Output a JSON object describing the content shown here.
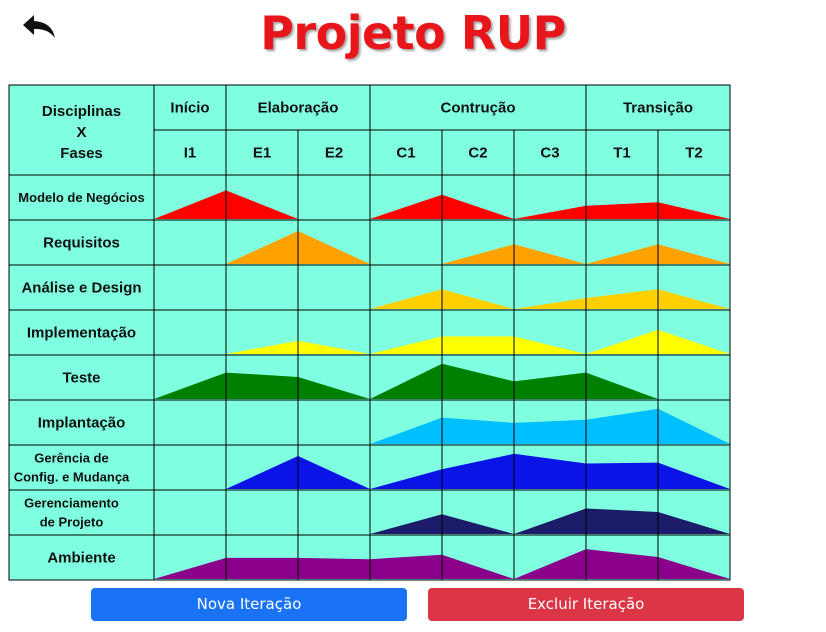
{
  "header": {
    "title": "Projeto RUP",
    "back_icon": "undo-arrow-icon"
  },
  "table": {
    "corner": [
      "Disciplinas",
      "X",
      "Fases"
    ],
    "phases": [
      {
        "label": "Início",
        "span": 1
      },
      {
        "label": "Elaboração",
        "span": 2
      },
      {
        "label": "Contrução",
        "span": 3
      },
      {
        "label": "Transição",
        "span": 2
      }
    ],
    "iterations": [
      "I1",
      "E1",
      "E2",
      "C1",
      "C2",
      "C3",
      "T1",
      "T2"
    ],
    "colors": {
      "cell_background": "#7fffe0",
      "grid_line": "#000000"
    },
    "disciplines": [
      {
        "lines": [
          "Modelo de Negócios"
        ],
        "color": "#ff0000",
        "profile": [
          0,
          0.65,
          0,
          0,
          0.55,
          0,
          0.3,
          0.38,
          0
        ]
      },
      {
        "lines": [
          "Requisitos"
        ],
        "color": "#ffa200",
        "profile": [
          0,
          0,
          0.75,
          0,
          0,
          0.45,
          0,
          0.45,
          0
        ]
      },
      {
        "lines": [
          "Análise e Design"
        ],
        "color": "#ffd000",
        "profile": [
          0,
          0,
          0,
          0,
          0.45,
          0,
          0.25,
          0.45,
          0
        ]
      },
      {
        "lines": [
          "Implementação"
        ],
        "color": "#ffff00",
        "profile": [
          0,
          0,
          0.3,
          0,
          0.4,
          0.4,
          0,
          0.55,
          0
        ]
      },
      {
        "lines": [
          "Teste"
        ],
        "color": "#008000",
        "profile": [
          0,
          0.6,
          0.5,
          0,
          0.8,
          0.4,
          0.6,
          0,
          0
        ]
      },
      {
        "lines": [
          "Implantação"
        ],
        "color": "#00bfff",
        "profile": [
          0,
          0,
          0,
          0,
          0.6,
          0.48,
          0.55,
          0.8,
          0
        ]
      },
      {
        "lines": [
          "Gerência de",
          "Config. e Mudança"
        ],
        "color": "#0a14e6",
        "profile": [
          0,
          0,
          0.75,
          0,
          0.45,
          0.8,
          0.58,
          0.6,
          0
        ]
      },
      {
        "lines": [
          "Gerenciamento",
          "de Projeto"
        ],
        "color": "#1c1c6b",
        "profile": [
          0,
          0,
          0,
          0,
          0.45,
          0,
          0.58,
          0.5,
          0
        ]
      },
      {
        "lines": [
          "Ambiente"
        ],
        "color": "#8b008b",
        "profile": [
          0,
          0.48,
          0.48,
          0.45,
          0.55,
          0,
          0.68,
          0.5,
          0
        ]
      }
    ]
  },
  "buttons": {
    "new_iteration": "Nova Iteração",
    "delete_iteration": "Excluir Iteração"
  }
}
